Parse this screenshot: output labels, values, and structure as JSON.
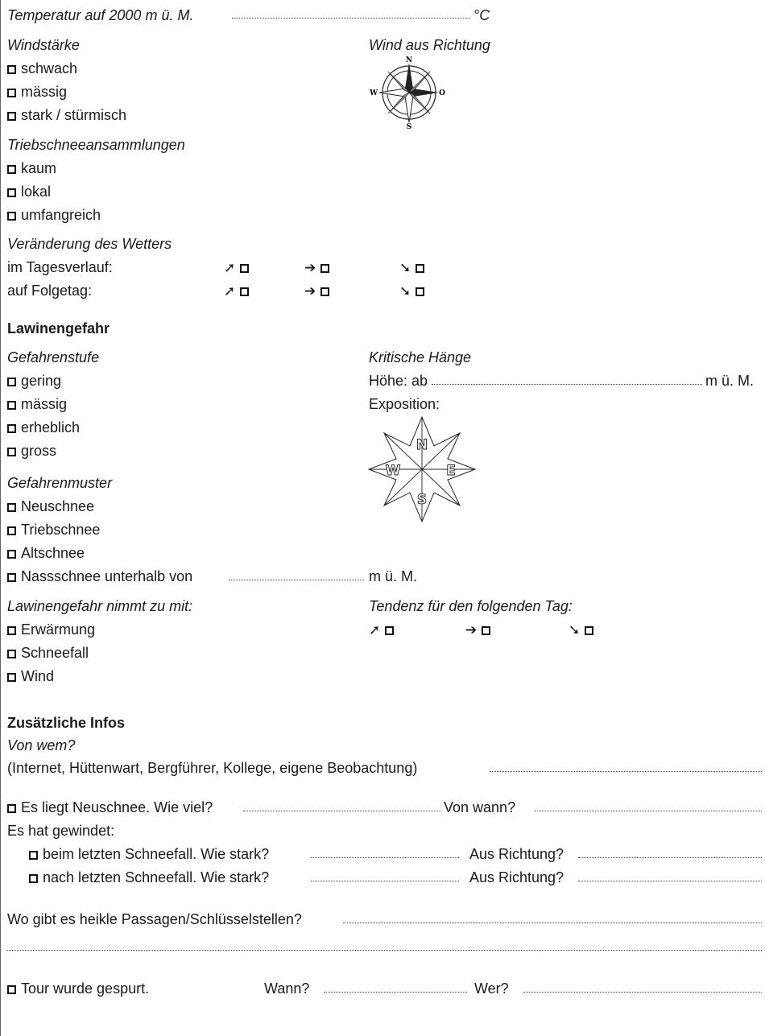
{
  "weather": {
    "temperature": {
      "label": "Temperatur auf 2000 m ü. M.",
      "unit": "°C"
    },
    "wind_strength": {
      "heading": "Windstärke",
      "options": [
        "schwach",
        "mässig",
        "stark / stürmisch"
      ]
    },
    "wind_direction": {
      "heading": "Wind aus Richtung",
      "compass": {
        "n": "N",
        "s": "S",
        "w": "W",
        "o": "O"
      }
    },
    "drift_snow": {
      "heading": "Triebschneeansammlungen",
      "options": [
        "kaum",
        "lokal",
        "umfangreich"
      ]
    },
    "change": {
      "heading": "Veränderung des Wetters",
      "rows": [
        "im Tagesverlauf:",
        "auf Folgetag:"
      ],
      "arrows": [
        "➚",
        "➔",
        "➘"
      ]
    }
  },
  "avalanche": {
    "heading": "Lawinengefahr",
    "danger_level": {
      "heading": "Gefahrenstufe",
      "options": [
        "gering",
        "mässig",
        "erheblich",
        "gross"
      ]
    },
    "critical_slopes": {
      "heading": "Kritische Hänge",
      "height_label": "Höhe: ab",
      "height_unit": "m ü. M.",
      "exposition_label": "Exposition:",
      "compass": {
        "n": "N",
        "s": "S",
        "w": "W",
        "e": "E"
      }
    },
    "pattern": {
      "heading": "Gefahrenmuster",
      "options": [
        "Neuschnee",
        "Triebschnee",
        "Altschnee",
        "Nassschnee unterhalb von"
      ],
      "wet_unit": "m ü. M."
    },
    "increases": {
      "heading": "Lawinengefahr nimmt zu mit:",
      "options": [
        "Erwärmung",
        "Schneefall",
        "Wind"
      ]
    },
    "tendency": {
      "heading": "Tendenz für den folgenden Tag:"
    }
  },
  "additional": {
    "heading": "Zusätzliche Infos",
    "source_heading": "Von wem?",
    "source_text": "(Internet, Hüttenwart, Bergführer, Kollege, eigene Beobachtung)",
    "new_snow_label": "Es liegt Neuschnee. Wie viel?",
    "new_snow_when": "Von wann?",
    "wind_label": "Es hat gewindet:",
    "wind_last_snowfall": "beim letzten Schneefall. Wie stark?",
    "wind_after_snowfall": "nach letzten Schneefall. Wie stark?",
    "direction_label": "Aus Richtung?",
    "passages_label": "Wo gibt es heikle Passagen/Schlüsselstellen?",
    "tour_label": "Tour wurde gespurt.",
    "tour_when": "Wann?",
    "tour_who": "Wer?"
  }
}
